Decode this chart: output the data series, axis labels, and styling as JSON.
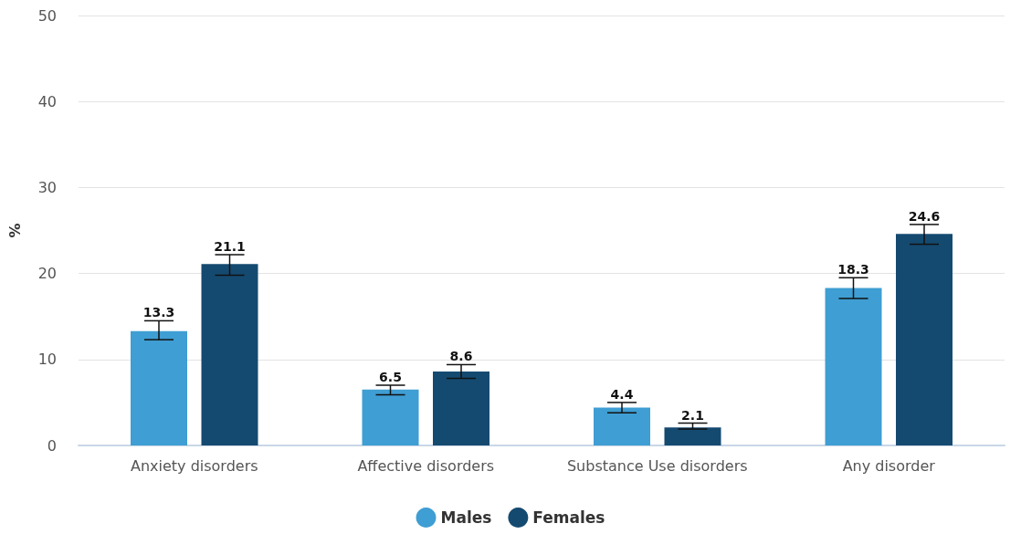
{
  "chart_data": {
    "type": "bar",
    "ylabel": "%",
    "categories": [
      "Anxiety disorders",
      "Affective disorders",
      "Substance Use disorders",
      "Any disorder"
    ],
    "series": [
      {
        "name": "Males",
        "color": "#3f9ed3",
        "values": [
          13.3,
          6.5,
          4.4,
          18.3
        ],
        "errors": [
          [
            12.3,
            14.5
          ],
          [
            5.9,
            7.0
          ],
          [
            3.8,
            5.0
          ],
          [
            17.1,
            19.5
          ]
        ]
      },
      {
        "name": "Females",
        "color": "#154a70",
        "values": [
          21.1,
          8.6,
          2.1,
          24.6
        ],
        "errors": [
          [
            19.8,
            22.2
          ],
          [
            7.8,
            9.4
          ],
          [
            1.9,
            2.6
          ],
          [
            23.4,
            25.7
          ]
        ]
      }
    ],
    "ylim": [
      0,
      50
    ],
    "yticks": [
      0,
      10,
      20,
      30,
      40,
      50
    ],
    "grid": "y",
    "legend": "bottom",
    "data_labels": true
  }
}
